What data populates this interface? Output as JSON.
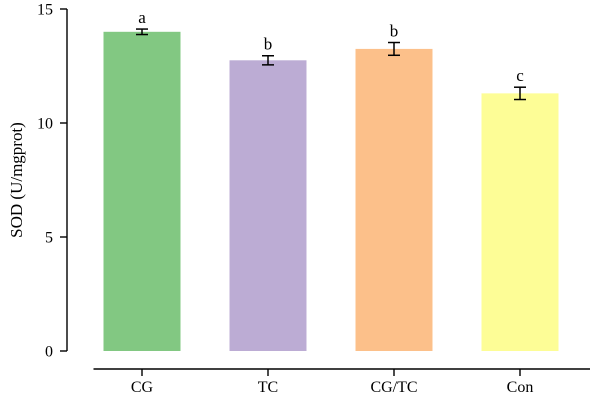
{
  "chart_data": {
    "type": "bar",
    "title": "",
    "xlabel": "",
    "ylabel": "SOD (U/mgprot)",
    "ylim": [
      0,
      15
    ],
    "yticks": [
      0,
      5,
      10,
      15
    ],
    "grid": false,
    "categories": [
      "CG",
      "TC",
      "CG/TC",
      "Con"
    ],
    "values": [
      14.0,
      12.75,
      13.25,
      11.3
    ],
    "errors": [
      0.12,
      0.2,
      0.28,
      0.27
    ],
    "significance_labels": [
      "a",
      "b",
      "b",
      "c"
    ],
    "colors": [
      "#82c882",
      "#bcacd4",
      "#fcc08a",
      "#fdfd96"
    ]
  }
}
